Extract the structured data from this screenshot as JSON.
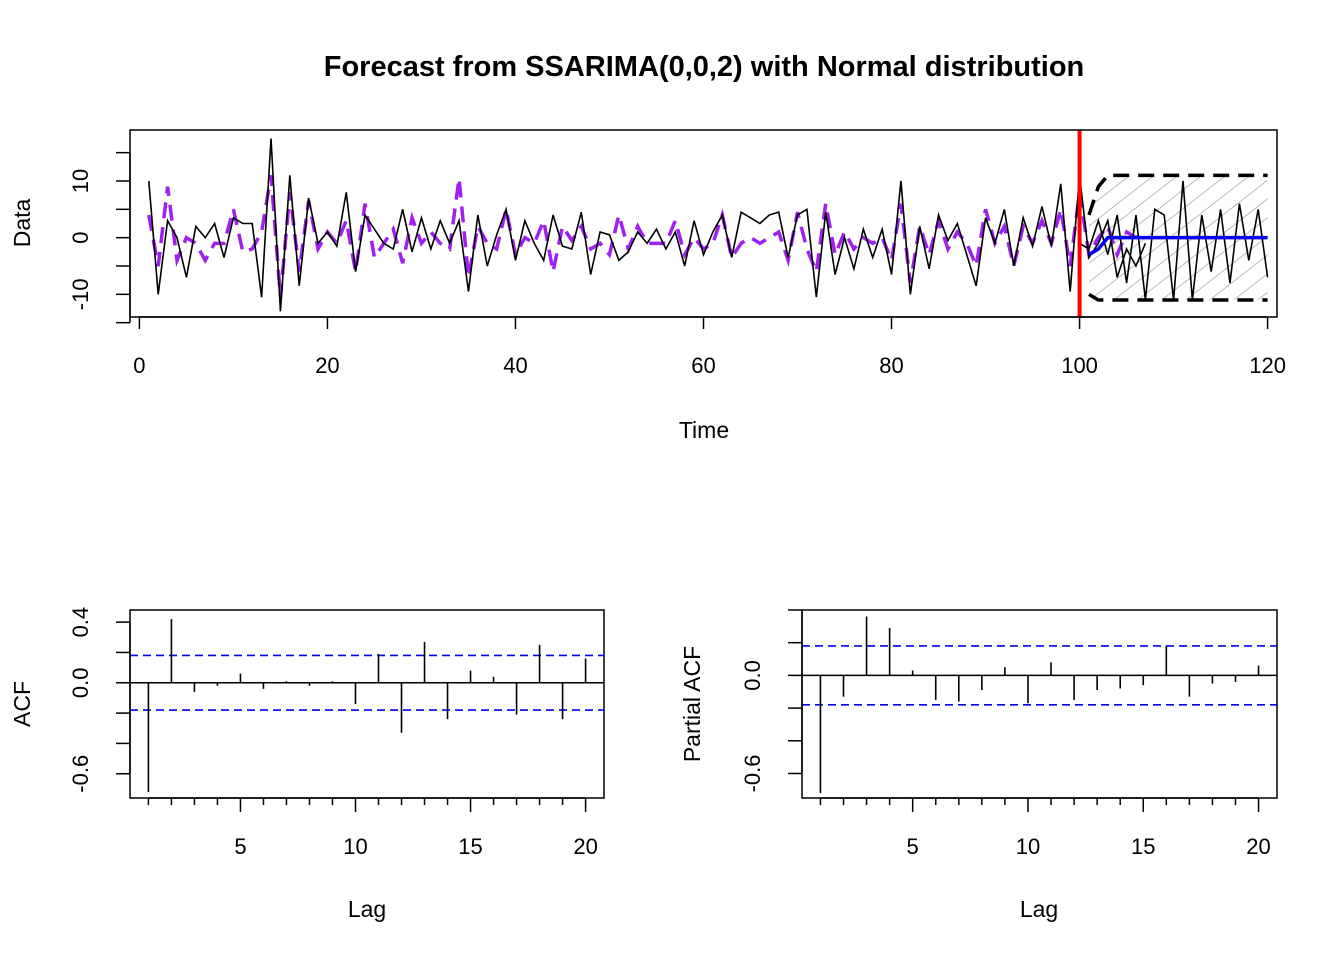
{
  "chart_data": [
    {
      "type": "line",
      "title": "Forecast from SSARIMA(0,0,2) with Normal distribution",
      "xlabel": "Time",
      "ylabel": "Data",
      "xlim": [
        -1,
        121
      ],
      "ylim": [
        -14,
        19
      ],
      "xticks": [
        "0",
        "20",
        "40",
        "60",
        "80",
        "100",
        "120"
      ],
      "yticks": [
        "-10",
        "0",
        "10"
      ],
      "forecast_origin": 100,
      "colors": {
        "actuals": "#000000",
        "fitted": "#a020f0",
        "forecast": "#0000ee",
        "origin_line": "#ff0000",
        "interval": "#000000",
        "interval_hatch": "#bbbbbb"
      },
      "actuals": [
        10,
        -10,
        3,
        0,
        -7,
        2,
        0,
        2.5,
        -3.5,
        3.5,
        2.5,
        2.5,
        -10.5,
        17.5,
        -13,
        11,
        -8.5,
        7,
        -1,
        1,
        -1.5,
        8,
        -6,
        4,
        1.5,
        -1,
        -2,
        5,
        -2.5,
        3.5,
        -2,
        3,
        -1,
        3,
        -9.5,
        4,
        -5,
        0.5,
        5,
        -4,
        3,
        -1,
        -4,
        4,
        -1.5,
        -2,
        4.5,
        -6.5,
        1,
        0.5,
        -4,
        -2.5,
        1,
        -1,
        1.5,
        -2,
        1,
        -5,
        3,
        -3,
        1,
        4,
        -3.5,
        4.5,
        3.5,
        2.5,
        4,
        4.5,
        -3.5,
        4,
        5,
        -10.5,
        4.5,
        -6.5,
        0,
        -5.5,
        1.5,
        -3.5,
        1.5,
        -6.5,
        10,
        -10,
        2,
        -5.5,
        4,
        -0.5,
        2.5,
        -3,
        -8.5,
        3.5,
        -1,
        5,
        -5,
        3.5,
        -1.5,
        5.5,
        -1.5,
        9.5,
        -9.5,
        11,
        -3.5,
        -1,
        3,
        -7,
        -2,
        -5,
        -1
      ],
      "fitted": [
        4,
        -5,
        9,
        -4,
        0,
        -1,
        -4,
        -1,
        -1,
        5,
        -2.5,
        -2,
        1,
        11,
        -10.5,
        8,
        -6,
        6.5,
        -2,
        1,
        -1,
        3,
        -6,
        6,
        -3.5,
        -1,
        1.5,
        -4.5,
        3.5,
        -1,
        1,
        -1,
        -2,
        10.5,
        -7,
        2,
        -1,
        -2,
        5,
        -3,
        0,
        -1,
        3,
        -6,
        2,
        -0.5,
        2,
        -2,
        -1,
        -3,
        4,
        -2,
        2,
        -1,
        -1,
        -1,
        3,
        -3,
        0,
        -2,
        -1,
        4,
        -3.5,
        -1,
        0,
        -1,
        0,
        1,
        -4,
        4.5,
        -2,
        -6,
        6,
        -3,
        1,
        -2,
        0,
        -1,
        0,
        -4,
        6,
        -8,
        2,
        -3,
        3,
        -2,
        1,
        -1,
        -5,
        5,
        -1,
        2,
        -5,
        2,
        -1,
        3,
        -1,
        5,
        -5,
        8,
        -3,
        0,
        2,
        -3,
        1,
        0,
        1
      ],
      "forecast": [
        -3,
        -2,
        0,
        0,
        0,
        0,
        0,
        0,
        0,
        0,
        0,
        0,
        0,
        0,
        0,
        0,
        0,
        0,
        0,
        0
      ],
      "upper": [
        4,
        9,
        11,
        11,
        11,
        11,
        11,
        11,
        11,
        11,
        11,
        11,
        11,
        11,
        11,
        11,
        11,
        11,
        11,
        11
      ],
      "lower": [
        -10,
        -11,
        -11,
        -11,
        -11,
        -11,
        -11,
        -11,
        -11,
        -11,
        -11,
        -11,
        -11,
        -11,
        -11,
        -11,
        -11,
        -11,
        -11,
        -11
      ],
      "holdout": [
        -2,
        3,
        -3,
        4,
        -8,
        4,
        -11,
        5,
        4,
        -11,
        10,
        -11,
        4,
        -6,
        5,
        -8,
        6,
        -4,
        5,
        -7
      ]
    },
    {
      "type": "bar",
      "xlabel": "Lag",
      "ylabel": "ACF",
      "xlim": [
        0.2,
        20.8
      ],
      "ylim": [
        -0.76,
        0.48
      ],
      "xticks": [
        "5",
        "10",
        "15",
        "20"
      ],
      "yticks": [
        "-0.6",
        "0.0",
        "0.4"
      ],
      "confidence_band": 0.18,
      "lags": [
        1,
        2,
        3,
        4,
        5,
        6,
        7,
        8,
        9,
        10,
        11,
        12,
        13,
        14,
        15,
        16,
        17,
        18,
        19,
        20
      ],
      "values": [
        -0.72,
        0.42,
        -0.06,
        -0.02,
        0.06,
        -0.04,
        0.01,
        -0.02,
        0.01,
        -0.14,
        0.19,
        -0.33,
        0.27,
        -0.24,
        0.08,
        0.04,
        -0.21,
        0.25,
        -0.24,
        0.16
      ]
    },
    {
      "type": "bar",
      "xlabel": "Lag",
      "ylabel": "Partial ACF",
      "xlim": [
        0.2,
        20.8
      ],
      "ylim": [
        -0.75,
        0.4
      ],
      "xticks": [
        "5",
        "10",
        "15",
        "20"
      ],
      "yticks": [
        "-0.6",
        "0.0"
      ],
      "confidence_band": 0.18,
      "lags": [
        1,
        2,
        3,
        4,
        5,
        6,
        7,
        8,
        9,
        10,
        11,
        12,
        13,
        14,
        15,
        16,
        17,
        18,
        19,
        20
      ],
      "values": [
        -0.72,
        -0.13,
        0.36,
        0.29,
        0.03,
        -0.15,
        -0.16,
        -0.09,
        0.05,
        -0.17,
        0.08,
        -0.15,
        -0.09,
        -0.08,
        -0.06,
        0.18,
        -0.13,
        -0.05,
        -0.04,
        0.06
      ]
    }
  ]
}
